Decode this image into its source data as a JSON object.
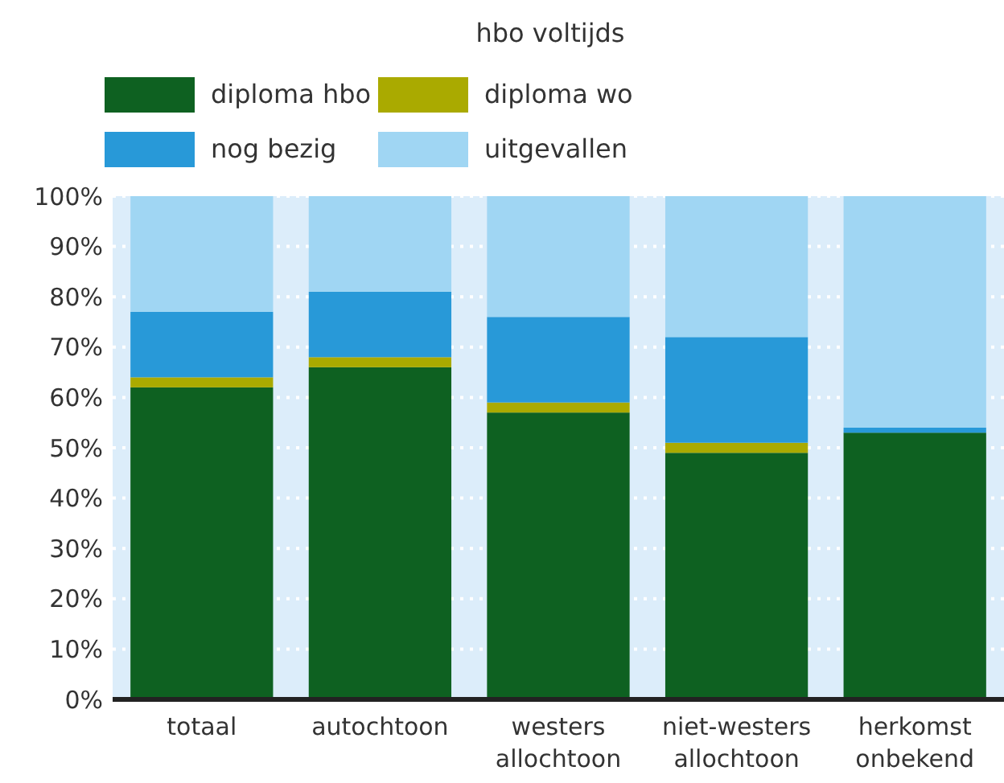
{
  "chart_data": {
    "type": "bar",
    "stacked": true,
    "title": "hbo voltijds",
    "categories": [
      "totaal",
      "autochtoon",
      "westers allochtoon",
      "niet-westers allochtoon",
      "herkomst onbekend"
    ],
    "series": [
      {
        "name": "diploma hbo",
        "color": "#0e6121",
        "values": [
          62,
          66,
          57,
          49,
          53
        ]
      },
      {
        "name": "diploma wo",
        "color": "#aaaa00",
        "values": [
          2,
          2,
          2,
          2,
          0
        ]
      },
      {
        "name": "nog bezig",
        "color": "#2899d8",
        "values": [
          13,
          13,
          17,
          21,
          1
        ]
      },
      {
        "name": "uitgevallen",
        "color": "#a0d6f3",
        "values": [
          23,
          19,
          24,
          28,
          46
        ]
      }
    ],
    "ylim": [
      0,
      100
    ],
    "yticks": [
      {
        "value": 0,
        "label": "0%"
      },
      {
        "value": 10,
        "label": "10%"
      },
      {
        "value": 20,
        "label": "20%"
      },
      {
        "value": 30,
        "label": "30%"
      },
      {
        "value": 40,
        "label": "40%"
      },
      {
        "value": 50,
        "label": "50%"
      },
      {
        "value": 60,
        "label": "60%"
      },
      {
        "value": 70,
        "label": "70%"
      },
      {
        "value": 80,
        "label": "80%"
      },
      {
        "value": 90,
        "label": "90%"
      },
      {
        "value": 100,
        "label": "100%"
      }
    ],
    "bands": [
      {
        "axis": "y",
        "from": 0,
        "to": 100,
        "color": "#dcedfa"
      }
    ],
    "grid": "y",
    "legend": "top"
  }
}
